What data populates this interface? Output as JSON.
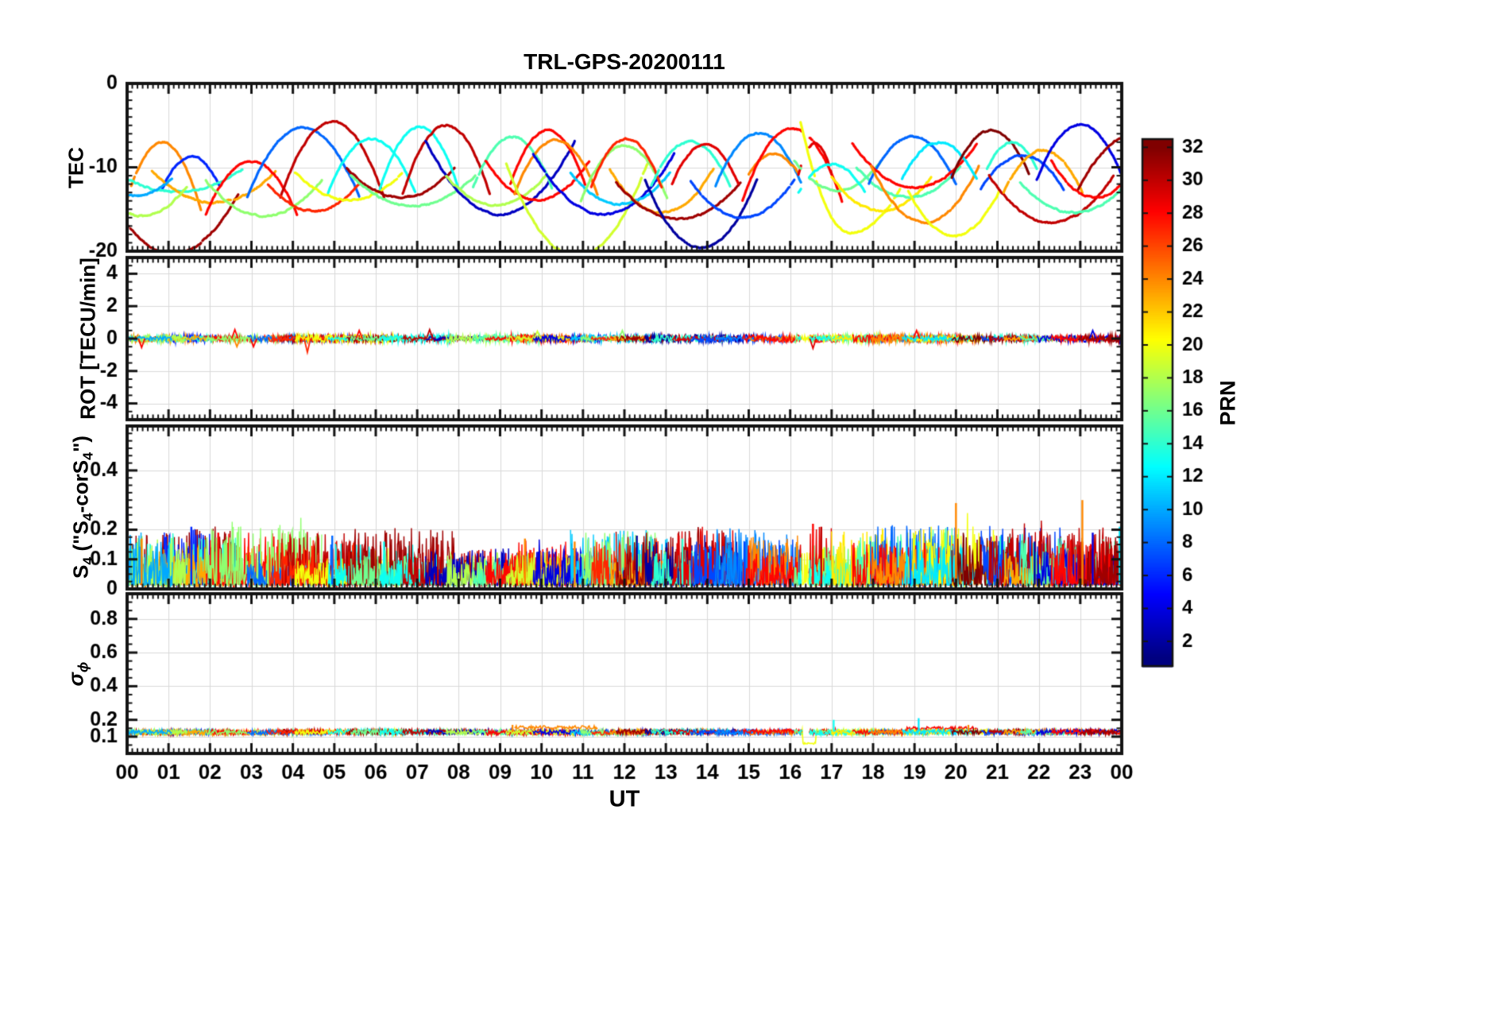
{
  "title": "TRL-GPS-20200111",
  "xaxis": {
    "label": "UT",
    "tick_labels": [
      "00",
      "01",
      "02",
      "03",
      "04",
      "05",
      "06",
      "07",
      "08",
      "09",
      "10",
      "11",
      "12",
      "13",
      "14",
      "15",
      "16",
      "17",
      "18",
      "19",
      "20",
      "21",
      "22",
      "23",
      "00"
    ]
  },
  "colorbar": {
    "label": "PRN",
    "ticks": [
      2,
      4,
      6,
      8,
      10,
      12,
      14,
      16,
      18,
      20,
      22,
      24,
      26,
      28,
      30,
      32
    ],
    "prn_range": [
      0.5,
      32.5
    ],
    "colormap": "jet"
  },
  "panels_meta": {
    "tec": {
      "label": "TEC",
      "ylim": [
        -20,
        0
      ],
      "ticks": [
        0,
        -10,
        -20
      ],
      "tick_labels": [
        "0",
        "-10",
        "-20"
      ],
      "minor_step": 1,
      "grid_ticks": [
        -10
      ]
    },
    "rot": {
      "label": "ROT [TECU/min]",
      "ylim": [
        -5,
        5
      ],
      "ticks": [
        4,
        2,
        0,
        -2,
        -4
      ],
      "tick_labels": [
        "4",
        "2",
        "0",
        "-2",
        "-4"
      ],
      "minor_step": 0.5,
      "grid_ticks": [
        4,
        2,
        0,
        -2,
        -4
      ]
    },
    "s4": {
      "label_parts": {
        "base": "S",
        "sub1": "4",
        "q1": " (\"S",
        "sub2": "4",
        "mid": "-corS",
        "sub3": "4",
        "q2": "\")"
      },
      "ylim": [
        0,
        0.55
      ],
      "ticks": [
        0.4,
        0.2,
        0.1,
        0
      ],
      "tick_labels": [
        "0.4",
        "0.2",
        "0.1",
        "0"
      ],
      "minor_step": 0.025,
      "grid_ticks": [
        0.4,
        0.2,
        0.1
      ]
    },
    "sigma_phi": {
      "label_parts": {
        "base": "σ",
        "sub": "ϕ"
      },
      "ylim": [
        0,
        0.95
      ],
      "ticks": [
        0.8,
        0.6,
        0.4,
        0.2,
        0.1
      ],
      "tick_labels": [
        "0.8",
        "0.6",
        "0.4",
        "0.2",
        "0.1"
      ],
      "minor_step": 0.05,
      "grid_ticks": [
        0.8,
        0.6,
        0.4,
        0.2,
        0.1
      ]
    }
  },
  "chart_data": {
    "type": "line",
    "x_unit": "UT hours",
    "x_range": [
      0,
      24
    ],
    "prn_range": [
      1,
      32
    ],
    "data_gap": [
      16.27,
      16.45
    ],
    "arc_fields": [
      "prn",
      "t_center_h",
      "half_width_h",
      "tec_at_center",
      "tec_at_edge_left",
      "tec_at_edge_right_optional"
    ],
    "tec_arcs": [
      [
        31,
        1.1,
        1.6,
        -20.3,
        -13.0
      ],
      [
        24,
        0.85,
        0.95,
        -7.0,
        -15.5
      ],
      [
        6,
        1.55,
        0.7,
        -8.7,
        -12.5
      ],
      [
        14,
        1.2,
        1.6,
        -12.9,
        -10.2
      ],
      [
        23,
        2.1,
        1.5,
        -14.2,
        -10.4
      ],
      [
        18,
        0.35,
        1.1,
        -15.8,
        -12.2
      ],
      [
        10,
        0.2,
        0.9,
        -13.4,
        -11.2
      ],
      [
        28,
        3.0,
        1.1,
        -9.3,
        -15.6
      ],
      [
        17,
        3.3,
        1.4,
        -15.8,
        -11.6
      ],
      [
        8,
        4.25,
        1.35,
        -5.3,
        -13.5
      ],
      [
        30,
        4.95,
        1.25,
        -4.6,
        -13.6
      ],
      [
        27,
        4.5,
        1.1,
        -15.2,
        -12.0
      ],
      [
        20,
        5.35,
        1.3,
        -13.9,
        -10.6
      ],
      [
        13,
        5.9,
        1.05,
        -6.6,
        -13.0
      ],
      [
        31,
        6.6,
        1.3,
        -13.6,
        -10.1
      ],
      [
        16,
        6.9,
        1.5,
        -14.6,
        -11.0
      ],
      [
        13,
        7.05,
        0.95,
        -5.2,
        -12.6
      ],
      [
        30,
        7.7,
        1.05,
        -5.0,
        -13.2
      ],
      [
        3,
        9.0,
        1.8,
        -15.6,
        -6.8
      ],
      [
        18,
        8.9,
        1.2,
        -14.5,
        -11.0
      ],
      [
        15,
        9.3,
        0.95,
        -6.4,
        -12.4
      ],
      [
        28,
        9.9,
        1.25,
        -13.9,
        -9.2
      ],
      [
        28,
        10.15,
        0.9,
        -5.6,
        -12.0
      ],
      [
        24,
        10.35,
        1.0,
        -6.8,
        -13.2
      ],
      [
        19,
        10.85,
        1.7,
        -20.6,
        -9.6
      ],
      [
        4,
        11.5,
        1.7,
        -15.6,
        -8.4
      ],
      [
        11,
        11.9,
        1.2,
        -14.4,
        -10.6
      ],
      [
        17,
        12.0,
        1.05,
        -7.4,
        -14.0
      ],
      [
        27,
        12.05,
        0.85,
        -6.6,
        -12.4
      ],
      [
        23,
        12.9,
        1.25,
        -15.4,
        -10.2
      ],
      [
        31,
        13.3,
        1.5,
        -16.2,
        -11.8
      ],
      [
        2,
        13.85,
        1.35,
        -19.6,
        -11.5
      ],
      [
        14,
        13.6,
        0.95,
        -6.9,
        -12.2
      ],
      [
        29,
        13.95,
        0.8,
        -7.3,
        -12.0
      ],
      [
        7,
        14.85,
        1.25,
        -16.0,
        -11.6
      ],
      [
        9,
        15.25,
        1.05,
        -5.9,
        -12.3
      ],
      [
        24,
        15.6,
        0.6,
        -8.4,
        -10.8
      ],
      [
        28,
        16.05,
        1.2,
        -5.4,
        -14.0
      ],
      [
        20,
        17.45,
        1.2,
        -17.8,
        -4.6,
        -12.6
      ],
      [
        29,
        16.6,
        0.4,
        -7.2,
        -10.8
      ],
      [
        16,
        17.15,
        1.05,
        -12.8,
        -9.2
      ],
      [
        13,
        17.0,
        0.8,
        -9.6,
        -13.0
      ],
      [
        21,
        18.2,
        1.2,
        -15.2,
        -11.2
      ],
      [
        15,
        18.85,
        1.25,
        -13.6,
        -10.0
      ],
      [
        8,
        18.95,
        1.05,
        -6.3,
        -12.0
      ],
      [
        28,
        19.0,
        1.5,
        -12.4,
        -7.2
      ],
      [
        24,
        19.25,
        1.3,
        -16.6,
        -9.8
      ],
      [
        20,
        19.95,
        1.1,
        -18.2,
        -12.8
      ],
      [
        12,
        19.6,
        0.9,
        -7.0,
        -11.4
      ],
      [
        32,
        20.85,
        0.95,
        -5.6,
        -11.2
      ],
      [
        14,
        21.35,
        0.6,
        -7.0,
        -10.2
      ],
      [
        7,
        21.6,
        1.0,
        -8.6,
        -12.6
      ],
      [
        30,
        22.3,
        1.5,
        -16.6,
        -11.0
      ],
      [
        23,
        22.1,
        0.95,
        -8.0,
        -13.0
      ],
      [
        15,
        22.85,
        1.3,
        -15.4,
        -11.8
      ],
      [
        4,
        23.0,
        1.05,
        -4.9,
        -11.5
      ],
      [
        28,
        23.35,
        1.05,
        -13.6,
        -9.2
      ],
      [
        31,
        24.35,
        1.4,
        -6.0,
        -12.6
      ]
    ],
    "rot": {
      "baseline": 0,
      "noise_amplitude": 0.18,
      "spikes": [
        {
          "t": 0.35,
          "v": -0.55,
          "prn": 28
        },
        {
          "t": 2.6,
          "v": 0.55,
          "prn": 28
        },
        {
          "t": 2.65,
          "v": -0.5,
          "prn": 24
        },
        {
          "t": 3.05,
          "v": -0.5,
          "prn": 28
        },
        {
          "t": 4.35,
          "v": -0.85,
          "prn": 27
        },
        {
          "t": 5.6,
          "v": 0.5,
          "prn": 28
        },
        {
          "t": 7.3,
          "v": 0.55,
          "prn": 30
        },
        {
          "t": 9.9,
          "v": 0.45,
          "prn": 19
        },
        {
          "t": 11.95,
          "v": 0.5,
          "prn": 17
        },
        {
          "t": 16.55,
          "v": -0.6,
          "prn": 29
        },
        {
          "t": 19.05,
          "v": 0.5,
          "prn": 28
        },
        {
          "t": 23.3,
          "v": 0.5,
          "prn": 4
        }
      ]
    },
    "s4": {
      "baseline": 0.05,
      "typical_max": 0.15,
      "spikes": [
        {
          "t": 0.35,
          "v": 0.17,
          "prn": 24
        },
        {
          "t": 1.55,
          "v": 0.21,
          "prn": 6
        },
        {
          "t": 2.2,
          "v": 0.19,
          "prn": 28
        },
        {
          "t": 3.4,
          "v": 0.16,
          "prn": 17
        },
        {
          "t": 4.95,
          "v": 0.18,
          "prn": 8
        },
        {
          "t": 6.2,
          "v": 0.16,
          "prn": 13
        },
        {
          "t": 7.5,
          "v": 0.15,
          "prn": 30
        },
        {
          "t": 9.6,
          "v": 0.17,
          "prn": 24
        },
        {
          "t": 10.8,
          "v": 0.16,
          "prn": 24
        },
        {
          "t": 12.3,
          "v": 0.18,
          "prn": 2
        },
        {
          "t": 13.4,
          "v": 0.17,
          "prn": 14
        },
        {
          "t": 14.9,
          "v": 0.16,
          "prn": 7
        },
        {
          "t": 16.55,
          "v": 0.22,
          "prn": 28
        },
        {
          "t": 16.75,
          "v": 0.21,
          "prn": 30
        },
        {
          "t": 17.9,
          "v": 0.15,
          "prn": 20
        },
        {
          "t": 18.9,
          "v": 0.17,
          "prn": 8
        },
        {
          "t": 19.1,
          "v": 0.16,
          "prn": 12
        },
        {
          "t": 20.0,
          "v": 0.29,
          "prn": 24
        },
        {
          "t": 20.6,
          "v": 0.15,
          "prn": 31
        },
        {
          "t": 21.9,
          "v": 0.16,
          "prn": 2
        },
        {
          "t": 23.05,
          "v": 0.3,
          "prn": 24
        },
        {
          "t": 23.3,
          "v": 0.19,
          "prn": 4
        },
        {
          "t": 23.95,
          "v": 0.21,
          "prn": 12
        }
      ]
    },
    "sigma_phi": {
      "baseline": 0.13,
      "noise_amplitude": 0.015,
      "dip": {
        "t0": 16.3,
        "t1": 16.62,
        "v": 0.06
      },
      "elevated": [
        {
          "t0": 9.2,
          "t1": 12.2,
          "v": 0.155,
          "prn": 24
        },
        {
          "t0": 18.8,
          "t1": 20.5,
          "v": 0.15,
          "prn": 28
        }
      ],
      "spikes": [
        {
          "t": 9.3,
          "v": 0.17,
          "prn": 24
        },
        {
          "t": 17.05,
          "v": 0.2,
          "prn": 13
        },
        {
          "t": 19.1,
          "v": 0.21,
          "prn": 12
        },
        {
          "t": 20.3,
          "v": 0.17,
          "prn": 24
        }
      ]
    }
  }
}
